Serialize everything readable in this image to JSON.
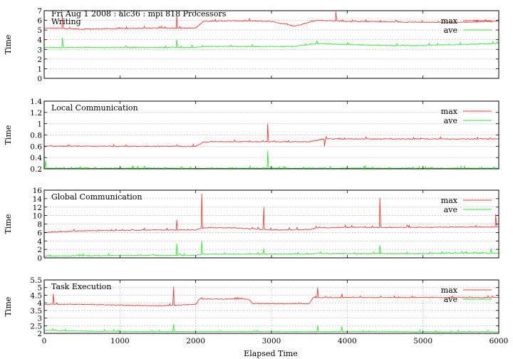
{
  "figure": {
    "header": "Fri Aug 1 2008 : alc36 : mpi 818 Processors",
    "xlabel": "Elapsed Time",
    "xlim": [
      0,
      6000
    ],
    "xticks": [
      0,
      1000,
      2000,
      3000,
      4000,
      5000,
      6000
    ],
    "colors": {
      "max": "#e8413c",
      "ave": "#33e633",
      "grid": "#a8a8a8",
      "frame": "#000000"
    }
  },
  "chart_data": [
    {
      "type": "line",
      "title": "Writing",
      "ylabel": "Time",
      "ylim": [
        0,
        7
      ],
      "yticks": [
        0,
        1,
        2,
        3,
        4,
        5,
        6,
        7
      ],
      "ytick_labels": [
        "0",
        "1",
        "2",
        "3",
        "4",
        "5",
        "6",
        "7"
      ],
      "grid": "horizontal dotted",
      "legend": "top-right",
      "x": [
        0,
        500,
        1000,
        1500,
        2000,
        2100,
        2500,
        3000,
        3300,
        3600,
        4000,
        4500,
        5000,
        5500,
        6000
      ],
      "series": [
        {
          "name": "max",
          "color": "#e8413c",
          "values": [
            5.2,
            5.1,
            5.15,
            5.2,
            5.2,
            5.9,
            5.95,
            5.9,
            5.4,
            6.0,
            5.9,
            5.85,
            5.8,
            5.8,
            5.9
          ]
        },
        {
          "name": "ave",
          "color": "#33e633",
          "values": [
            3.2,
            3.2,
            3.2,
            3.2,
            3.2,
            3.3,
            3.3,
            3.3,
            3.3,
            3.6,
            3.5,
            3.4,
            3.4,
            3.5,
            3.6
          ]
        }
      ],
      "spikes": [
        {
          "series": "max",
          "x": 240,
          "y": 6.5
        },
        {
          "series": "max",
          "x": 1750,
          "y": 6.5
        },
        {
          "series": "max",
          "x": 3850,
          "y": 6.9
        },
        {
          "series": "ave",
          "x": 240,
          "y": 4.2
        },
        {
          "series": "ave",
          "x": 1750,
          "y": 4.0
        },
        {
          "series": "ave",
          "x": 3600,
          "y": 3.9
        }
      ]
    },
    {
      "type": "line",
      "title": "Local Communication",
      "ylabel": "Time",
      "ylim": [
        0.2,
        1.4
      ],
      "yticks": [
        0.2,
        0.4,
        0.6,
        0.8,
        1.0,
        1.2,
        1.4
      ],
      "ytick_labels": [
        "0.2",
        "0.4",
        "0.6",
        "0.8",
        "1",
        "1.2",
        "1.4"
      ],
      "grid": "horizontal dotted",
      "legend": "top-right",
      "x": [
        0,
        500,
        1000,
        1500,
        2000,
        2100,
        2200,
        2500,
        3000,
        3500,
        3700,
        4000,
        4500,
        5000,
        5500,
        6000
      ],
      "series": [
        {
          "name": "max",
          "color": "#e8413c",
          "values": [
            0.6,
            0.6,
            0.6,
            0.6,
            0.6,
            0.67,
            0.68,
            0.68,
            0.68,
            0.68,
            0.73,
            0.73,
            0.73,
            0.73,
            0.73,
            0.73
          ]
        },
        {
          "name": "ave",
          "color": "#33e633",
          "values": [
            0.21,
            0.21,
            0.21,
            0.21,
            0.21,
            0.21,
            0.21,
            0.21,
            0.21,
            0.21,
            0.21,
            0.21,
            0.21,
            0.21,
            0.21,
            0.21
          ]
        }
      ],
      "spikes": [
        {
          "series": "max",
          "x": 2950,
          "y": 1.0
        },
        {
          "series": "max",
          "x": 3700,
          "y": 0.6
        },
        {
          "series": "ave",
          "x": 2950,
          "y": 0.52
        },
        {
          "series": "ave",
          "x": 20,
          "y": 0.35
        }
      ]
    },
    {
      "type": "line",
      "title": "Global Communication",
      "ylabel": "Time",
      "ylim": [
        0,
        16
      ],
      "yticks": [
        0,
        2,
        4,
        6,
        8,
        10,
        12,
        14,
        16
      ],
      "ytick_labels": [
        "0",
        "2",
        "4",
        "6",
        "8",
        "10",
        "12",
        "14",
        "16"
      ],
      "grid": "horizontal dotted",
      "legend": "top-right",
      "x": [
        0,
        500,
        1000,
        1500,
        2000,
        2100,
        2500,
        3000,
        3500,
        3600,
        4000,
        4500,
        5000,
        5500,
        6000
      ],
      "series": [
        {
          "name": "max",
          "color": "#e8413c",
          "values": [
            6.0,
            6.4,
            6.5,
            6.6,
            6.6,
            7.1,
            7.1,
            6.6,
            6.7,
            7.1,
            7.2,
            7.2,
            7.2,
            7.3,
            7.3
          ]
        },
        {
          "name": "ave",
          "color": "#33e633",
          "values": [
            0.4,
            0.5,
            0.6,
            0.6,
            0.6,
            0.9,
            0.9,
            0.9,
            0.9,
            1.0,
            1.0,
            1.0,
            1.0,
            1.1,
            1.1
          ]
        }
      ],
      "spikes": [
        {
          "series": "max",
          "x": 2080,
          "y": 15.2
        },
        {
          "series": "max",
          "x": 1750,
          "y": 9.0
        },
        {
          "series": "max",
          "x": 2900,
          "y": 12.0
        },
        {
          "series": "max",
          "x": 4430,
          "y": 14.2
        },
        {
          "series": "max",
          "x": 5960,
          "y": 10.3
        },
        {
          "series": "ave",
          "x": 1750,
          "y": 3.4
        },
        {
          "series": "ave",
          "x": 2080,
          "y": 4.0
        },
        {
          "series": "ave",
          "x": 2900,
          "y": 2.2
        },
        {
          "series": "ave",
          "x": 4430,
          "y": 3.0
        },
        {
          "series": "ave",
          "x": 5900,
          "y": 2.2
        }
      ]
    },
    {
      "type": "line",
      "title": "Task Execution",
      "ylabel": "Time",
      "ylim": [
        2,
        5.5
      ],
      "yticks": [
        2,
        2.5,
        3,
        3.5,
        4,
        4.5,
        5,
        5.5
      ],
      "ytick_labels": [
        "2",
        "2.5",
        "3",
        "3.5",
        "4",
        "4.5",
        "5",
        "5.5"
      ],
      "grid": "horizontal and vertical dotted",
      "legend": "top-right",
      "x": [
        0,
        500,
        1000,
        1500,
        2000,
        2050,
        2500,
        2700,
        2750,
        3000,
        3500,
        3550,
        4000,
        4500,
        5000,
        5500,
        5800
      ],
      "series": [
        {
          "name": "max",
          "color": "#e8413c",
          "values": [
            3.9,
            3.9,
            3.85,
            3.8,
            3.9,
            4.25,
            4.25,
            4.25,
            3.95,
            3.95,
            3.95,
            4.35,
            4.35,
            4.35,
            4.35,
            4.35,
            4.35
          ]
        },
        {
          "name": "ave",
          "color": "#33e633",
          "values": [
            2.2,
            2.15,
            2.12,
            2.12,
            2.12,
            2.12,
            2.12,
            2.12,
            2.12,
            2.12,
            2.12,
            2.12,
            2.12,
            2.12,
            2.1,
            2.1,
            2.1
          ]
        }
      ],
      "spikes": [
        {
          "series": "max",
          "x": 120,
          "y": 4.6
        },
        {
          "series": "max",
          "x": 1710,
          "y": 5.05
        },
        {
          "series": "max",
          "x": 3610,
          "y": 5.0
        },
        {
          "series": "max",
          "x": 3930,
          "y": 4.6
        },
        {
          "series": "ave",
          "x": 1710,
          "y": 2.6
        },
        {
          "series": "ave",
          "x": 3610,
          "y": 2.5
        },
        {
          "series": "ave",
          "x": 3930,
          "y": 2.45
        }
      ]
    }
  ]
}
